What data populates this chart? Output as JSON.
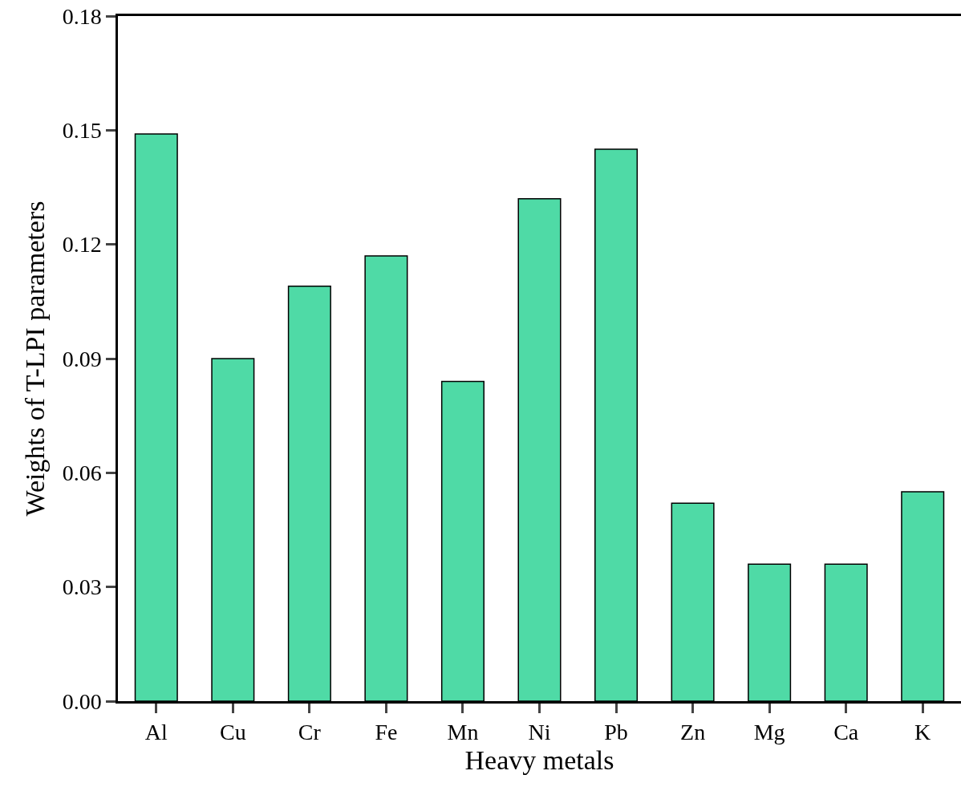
{
  "chart_data": {
    "type": "bar",
    "xlabel": "Heavy metals",
    "ylabel": "Weights of T-LPI parameters",
    "categories": [
      "Al",
      "Cu",
      "Cr",
      "Fe",
      "Mn",
      "Ni",
      "Pb",
      "Zn",
      "Mg",
      "Ca",
      "K"
    ],
    "values": [
      0.149,
      0.09,
      0.109,
      0.117,
      0.084,
      0.132,
      0.145,
      0.052,
      0.036,
      0.036,
      0.055
    ],
    "color": "#4fdaa6",
    "ylim": [
      0,
      0.18
    ],
    "yticks": [
      {
        "value": 0,
        "label": "0.00"
      },
      {
        "value": 0.03,
        "label": "0.03"
      },
      {
        "value": 0.06,
        "label": "0.06"
      },
      {
        "value": 0.09,
        "label": "0.09"
      },
      {
        "value": 0.12,
        "label": "0.12"
      },
      {
        "value": 0.15,
        "label": "0.15"
      },
      {
        "value": 0.18,
        "label": "0.18"
      }
    ],
    "line_style": "solid"
  }
}
